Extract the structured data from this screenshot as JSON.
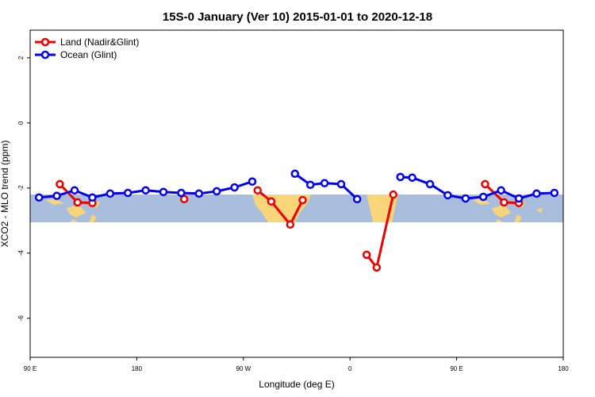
{
  "chart_data": {
    "type": "line",
    "title": "15S-0 January (Ver 10)   2015-01-01 to 2020-12-18",
    "x_label": "Longitude (deg E)",
    "y_label": "XCO2 - MLO trend (ppm)",
    "xlim": [
      90,
      540
    ],
    "xticks": [
      {
        "value": 90,
        "label": "90 E"
      },
      {
        "value": 180,
        "label": "180"
      },
      {
        "value": 270,
        "label": "90 W"
      },
      {
        "value": 360,
        "label": "0"
      },
      {
        "value": 450,
        "label": "90 E"
      },
      {
        "value": 540,
        "label": "180"
      }
    ],
    "ylim": [
      -7.2,
      2.85
    ],
    "yticks": [
      2,
      0,
      -2,
      -4,
      -6
    ],
    "legend": "top-left",
    "series": [
      {
        "name": "Land (Nadir&Glint)",
        "color": "#ee0000",
        "x": [
          115,
          130,
          142.5,
          null,
          220,
          null,
          282,
          293.5,
          309.5,
          320,
          null,
          374,
          382.5,
          396.5,
          null,
          474,
          490,
          502.5
        ],
        "values": [
          -1.88,
          -2.44,
          -2.46,
          null,
          -2.34,
          null,
          -2.07,
          -2.41,
          -3.12,
          -2.37,
          null,
          -4.05,
          -4.44,
          -2.2,
          null,
          -1.88,
          -2.44,
          -2.46
        ]
      },
      {
        "name": "Ocean (Glint)",
        "color": "#0000ee",
        "x": [
          97.5,
          112.5,
          127.5,
          142.5,
          157.5,
          172.5,
          187.5,
          202.5,
          217.5,
          232.5,
          247.5,
          262.5,
          277.5,
          null,
          313.5,
          326.5,
          338.5,
          352.5,
          366,
          null,
          402.5,
          412.5,
          427.5,
          442.5,
          457.5,
          472.5,
          487.5,
          502.5,
          517.5,
          532.5
        ],
        "values": [
          -2.29,
          -2.24,
          -2.07,
          -2.29,
          -2.17,
          -2.15,
          -2.07,
          -2.12,
          -2.15,
          -2.17,
          -2.1,
          -1.98,
          -1.8,
          null,
          -1.56,
          -1.9,
          -1.85,
          -1.88,
          -2.34,
          null,
          -1.66,
          -1.68,
          -1.88,
          -2.22,
          -2.32,
          -2.27,
          -2.07,
          -2.32,
          -2.17,
          -2.15
        ]
      }
    ]
  }
}
